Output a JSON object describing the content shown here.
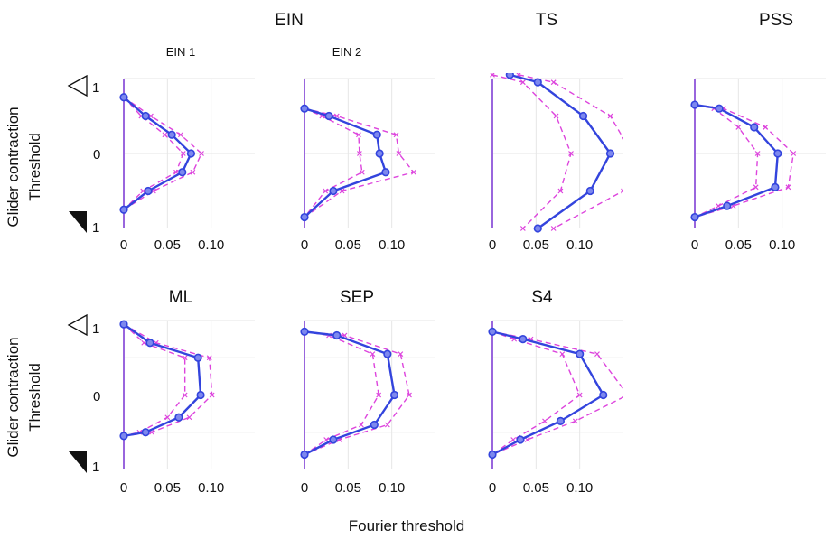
{
  "figure": {
    "group_title": "EIN",
    "xlabel": "Fourier threshold",
    "ylabel_lines": [
      "Glider contraction",
      "Threshold"
    ],
    "y_ticks": [
      "1",
      "0",
      "1"
    ],
    "x_ticks": [
      "0",
      "0.05",
      "0.10"
    ],
    "colors": {
      "mean": "#3344dd",
      "ci": "#dd44dd",
      "grid": "#e6e6e6",
      "axis": "#9966dd"
    },
    "icons": [
      "open-triangle-icon",
      "filled-triangle-icon"
    ]
  },
  "chart_data": [
    {
      "type": "line",
      "title": "EIN 1",
      "xlim": [
        0,
        0.15
      ],
      "ylim": [
        -1,
        1
      ],
      "grid": true,
      "y": [
        0.75,
        0.5,
        0.25,
        0,
        -0.25,
        -0.5,
        -0.75
      ],
      "series": [
        {
          "values": [
            0.0,
            0.025,
            0.055,
            0.077,
            0.067,
            0.028,
            0.0
          ]
        },
        {
          "values": [
            0.0,
            0.02,
            0.047,
            0.068,
            0.06,
            0.022,
            0.0
          ]
        },
        {
          "values": [
            0.0,
            0.031,
            0.065,
            0.089,
            0.079,
            0.034,
            0.0
          ]
        }
      ]
    },
    {
      "type": "line",
      "title": "EIN 2",
      "xlim": [
        0,
        0.15
      ],
      "ylim": [
        -1,
        1
      ],
      "grid": true,
      "y": [
        0.6,
        0.5,
        0.25,
        0,
        -0.25,
        -0.5,
        -0.85
      ],
      "series": [
        {
          "values": [
            0.0,
            0.028,
            0.083,
            0.086,
            0.093,
            0.033,
            0.0
          ]
        },
        {
          "values": [
            0.0,
            0.02,
            0.062,
            0.063,
            0.066,
            0.024,
            0.0
          ]
        },
        {
          "values": [
            0.0,
            0.037,
            0.105,
            0.108,
            0.125,
            0.043,
            0.0
          ]
        }
      ]
    },
    {
      "type": "line",
      "title": "TS",
      "xlim": [
        0,
        0.15
      ],
      "ylim": [
        -1,
        1
      ],
      "grid": true,
      "y": [
        1.05,
        0.95,
        0.5,
        0,
        -0.5,
        -1.0
      ],
      "series": [
        {
          "values": [
            0.02,
            0.052,
            0.104,
            0.135,
            0.112,
            0.052
          ]
        },
        {
          "values": [
            0.0,
            0.035,
            0.073,
            0.09,
            0.078,
            0.035
          ]
        },
        {
          "values": [
            0.03,
            0.07,
            0.135,
            0.16,
            0.15,
            0.07
          ]
        }
      ]
    },
    {
      "type": "line",
      "title": "PSS",
      "xlim": [
        0,
        0.15
      ],
      "ylim": [
        -1,
        1
      ],
      "grid": true,
      "y": [
        0.65,
        0.6,
        0.35,
        0,
        -0.45,
        -0.7,
        -0.85
      ],
      "series": [
        {
          "values": [
            0.0,
            0.028,
            0.068,
            0.095,
            0.092,
            0.037,
            0.0
          ]
        },
        {
          "values": [
            0.0,
            0.022,
            0.05,
            0.072,
            0.07,
            0.027,
            0.0
          ]
        },
        {
          "values": [
            0.0,
            0.033,
            0.081,
            0.113,
            0.107,
            0.044,
            0.0
          ]
        }
      ]
    },
    {
      "type": "line",
      "title": "ML",
      "xlim": [
        0,
        0.15
      ],
      "ylim": [
        -1,
        1
      ],
      "grid": true,
      "y": [
        0.95,
        0.7,
        0.5,
        0,
        -0.3,
        -0.5,
        -0.55
      ],
      "series": [
        {
          "values": [
            0.0,
            0.03,
            0.085,
            0.088,
            0.063,
            0.025,
            0.0
          ]
        },
        {
          "values": [
            0.0,
            0.023,
            0.07,
            0.07,
            0.05,
            0.018,
            0.0
          ]
        },
        {
          "values": [
            0.0,
            0.037,
            0.098,
            0.101,
            0.075,
            0.032,
            0.0
          ]
        }
      ]
    },
    {
      "type": "line",
      "title": "SEP",
      "xlim": [
        0,
        0.15
      ],
      "ylim": [
        -1,
        1
      ],
      "grid": true,
      "y": [
        0.85,
        0.8,
        0.55,
        0,
        -0.4,
        -0.6,
        -0.8
      ],
      "series": [
        {
          "values": [
            0.0,
            0.037,
            0.095,
            0.103,
            0.08,
            0.033,
            0.0
          ]
        },
        {
          "values": [
            0.0,
            0.028,
            0.078,
            0.085,
            0.065,
            0.025,
            0.0
          ]
        },
        {
          "values": [
            0.0,
            0.046,
            0.11,
            0.12,
            0.095,
            0.04,
            0.0
          ]
        }
      ]
    },
    {
      "type": "line",
      "title": "S4",
      "xlim": [
        0,
        0.15
      ],
      "ylim": [
        -1,
        1
      ],
      "grid": true,
      "y": [
        0.85,
        0.75,
        0.55,
        0,
        -0.35,
        -0.6,
        -0.8
      ],
      "series": [
        {
          "values": [
            0.0,
            0.035,
            0.1,
            0.127,
            0.078,
            0.032,
            0.0
          ]
        },
        {
          "values": [
            0.0,
            0.025,
            0.08,
            0.1,
            0.06,
            0.024,
            0.0
          ]
        },
        {
          "values": [
            0.0,
            0.044,
            0.12,
            0.155,
            0.095,
            0.04,
            0.0
          ]
        }
      ]
    }
  ]
}
